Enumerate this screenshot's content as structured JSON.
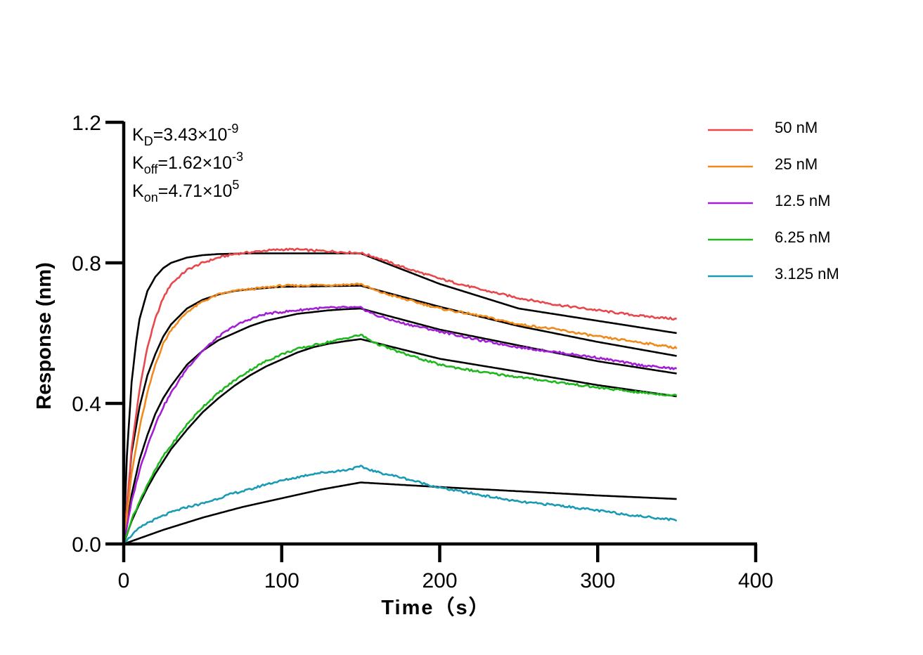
{
  "chart_data": {
    "type": "line",
    "title": "",
    "xlabel": "Time（s）",
    "ylabel": "Response (nm)",
    "xlim": [
      0,
      400
    ],
    "ylim": [
      0,
      1.2
    ],
    "xticks": [
      0,
      100,
      200,
      300,
      400
    ],
    "yticks": [
      0.0,
      0.4,
      0.8,
      1.2
    ],
    "xtick_labels": [
      "0",
      "100",
      "200",
      "300",
      "400"
    ],
    "ytick_labels": [
      "0.0",
      "0.4",
      "0.8",
      "1.2"
    ],
    "grid": false,
    "legend_position": "top-right",
    "kinetic_constants": [
      {
        "symbol": "K",
        "sub": "D",
        "mantissa": "=3.43×10",
        "exponent": "-9"
      },
      {
        "symbol": "K",
        "sub": "off",
        "mantissa": "=1.62×10",
        "exponent": "-3"
      },
      {
        "symbol": "K",
        "sub": "on",
        "mantissa": "=4.71×10",
        "exponent": "5"
      }
    ],
    "association_end_time": 150,
    "end_time": 350,
    "series": [
      {
        "name": "50 nM",
        "color": "#e8484b",
        "measured": {
          "x": [
            0,
            5,
            10,
            15,
            20,
            25,
            30,
            40,
            50,
            60,
            70,
            80,
            90,
            100,
            110,
            120,
            130,
            140,
            150,
            160,
            175,
            200,
            225,
            250,
            275,
            300,
            325,
            350
          ],
          "y": [
            0,
            0.27,
            0.44,
            0.56,
            0.64,
            0.7,
            0.74,
            0.78,
            0.8,
            0.815,
            0.825,
            0.83,
            0.835,
            0.838,
            0.838,
            0.835,
            0.833,
            0.83,
            0.828,
            0.815,
            0.79,
            0.755,
            0.725,
            0.7,
            0.68,
            0.665,
            0.65,
            0.64
          ]
        },
        "fit": {
          "x": [
            0,
            2,
            5,
            8,
            10,
            15,
            20,
            25,
            30,
            40,
            50,
            60,
            70,
            80,
            100,
            150,
            200,
            250,
            300,
            350
          ],
          "y": [
            0,
            0.25,
            0.46,
            0.58,
            0.64,
            0.72,
            0.76,
            0.785,
            0.8,
            0.815,
            0.822,
            0.825,
            0.826,
            0.827,
            0.827,
            0.827,
            0.74,
            0.67,
            0.635,
            0.6
          ]
        }
      },
      {
        "name": "25 nM",
        "color": "#f08a1c",
        "measured": {
          "x": [
            0,
            5,
            10,
            15,
            20,
            25,
            30,
            40,
            50,
            60,
            70,
            80,
            90,
            100,
            110,
            120,
            130,
            140,
            150,
            160,
            175,
            200,
            225,
            250,
            275,
            300,
            325,
            350
          ],
          "y": [
            0,
            0.2,
            0.33,
            0.43,
            0.51,
            0.57,
            0.61,
            0.66,
            0.69,
            0.71,
            0.72,
            0.725,
            0.73,
            0.735,
            0.735,
            0.737,
            0.737,
            0.738,
            0.74,
            0.72,
            0.7,
            0.67,
            0.65,
            0.625,
            0.61,
            0.59,
            0.575,
            0.558
          ]
        },
        "fit": {
          "x": [
            0,
            5,
            10,
            15,
            20,
            25,
            30,
            40,
            50,
            60,
            70,
            80,
            100,
            150,
            200,
            250,
            300,
            350
          ],
          "y": [
            0,
            0.26,
            0.39,
            0.48,
            0.54,
            0.59,
            0.625,
            0.67,
            0.695,
            0.71,
            0.72,
            0.725,
            0.732,
            0.735,
            0.675,
            0.62,
            0.575,
            0.535
          ]
        }
      },
      {
        "name": "12.5 nM",
        "color": "#a21fd6",
        "measured": {
          "x": [
            0,
            5,
            10,
            15,
            20,
            25,
            30,
            40,
            50,
            60,
            70,
            80,
            90,
            100,
            110,
            120,
            130,
            140,
            150,
            160,
            175,
            200,
            225,
            250,
            275,
            300,
            325,
            350
          ],
          "y": [
            0,
            0.12,
            0.21,
            0.28,
            0.34,
            0.39,
            0.43,
            0.5,
            0.55,
            0.59,
            0.62,
            0.64,
            0.655,
            0.66,
            0.665,
            0.67,
            0.672,
            0.673,
            0.672,
            0.65,
            0.63,
            0.605,
            0.58,
            0.56,
            0.545,
            0.53,
            0.51,
            0.498
          ]
        },
        "fit": {
          "x": [
            0,
            5,
            10,
            15,
            20,
            25,
            30,
            40,
            50,
            60,
            70,
            80,
            90,
            100,
            110,
            120,
            130,
            140,
            150,
            200,
            250,
            300,
            350
          ],
          "y": [
            0,
            0.14,
            0.24,
            0.31,
            0.37,
            0.415,
            0.45,
            0.51,
            0.55,
            0.58,
            0.6,
            0.62,
            0.635,
            0.645,
            0.655,
            0.66,
            0.665,
            0.668,
            0.67,
            0.61,
            0.565,
            0.52,
            0.485
          ]
        }
      },
      {
        "name": "6.25 nM",
        "color": "#1eb81e",
        "measured": {
          "x": [
            0,
            5,
            10,
            15,
            20,
            25,
            30,
            40,
            50,
            60,
            70,
            80,
            90,
            100,
            110,
            120,
            130,
            140,
            150,
            160,
            175,
            200,
            225,
            250,
            275,
            300,
            325,
            350
          ],
          "y": [
            0,
            0.07,
            0.12,
            0.17,
            0.21,
            0.25,
            0.28,
            0.34,
            0.39,
            0.43,
            0.465,
            0.495,
            0.52,
            0.54,
            0.555,
            0.565,
            0.575,
            0.585,
            0.595,
            0.57,
            0.545,
            0.51,
            0.49,
            0.475,
            0.46,
            0.445,
            0.432,
            0.422
          ]
        },
        "fit": {
          "x": [
            0,
            5,
            10,
            15,
            20,
            25,
            30,
            40,
            50,
            60,
            70,
            80,
            90,
            100,
            110,
            120,
            130,
            140,
            150,
            200,
            250,
            300,
            350
          ],
          "y": [
            0,
            0.065,
            0.115,
            0.16,
            0.2,
            0.235,
            0.27,
            0.325,
            0.375,
            0.415,
            0.45,
            0.48,
            0.505,
            0.525,
            0.545,
            0.56,
            0.57,
            0.577,
            0.583,
            0.527,
            0.49,
            0.452,
            0.42
          ]
        }
      },
      {
        "name": "3.125 nM",
        "color": "#1a9bb5",
        "measured": {
          "x": [
            0,
            5,
            10,
            15,
            20,
            25,
            30,
            40,
            50,
            60,
            70,
            80,
            90,
            100,
            110,
            120,
            130,
            140,
            150,
            160,
            175,
            200,
            225,
            250,
            275,
            300,
            325,
            350
          ],
          "y": [
            0,
            0.025,
            0.045,
            0.06,
            0.07,
            0.08,
            0.09,
            0.105,
            0.115,
            0.13,
            0.145,
            0.155,
            0.17,
            0.18,
            0.19,
            0.2,
            0.205,
            0.21,
            0.22,
            0.205,
            0.19,
            0.16,
            0.14,
            0.12,
            0.11,
            0.095,
            0.08,
            0.068
          ]
        },
        "fit": {
          "x": [
            0,
            25,
            50,
            75,
            100,
            125,
            150,
            200,
            250,
            300,
            350
          ],
          "y": [
            0,
            0.04,
            0.075,
            0.105,
            0.13,
            0.155,
            0.175,
            0.162,
            0.15,
            0.138,
            0.128
          ]
        }
      }
    ]
  }
}
